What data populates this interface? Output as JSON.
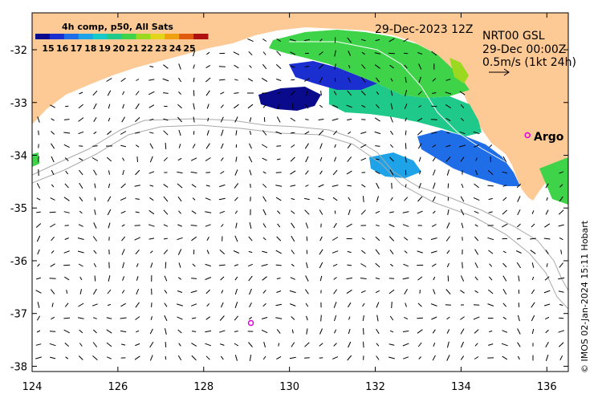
{
  "map": {
    "colorbar_title": "4h comp, p50, All Sats",
    "colorbar_ticks": [
      "15",
      "16",
      "17",
      "18",
      "19",
      "20",
      "21",
      "22",
      "23",
      "24",
      "25"
    ],
    "colorbar_colors": [
      "#0a0a8c",
      "#1b2fd0",
      "#1f6ee8",
      "#1fa3e8",
      "#18c9c9",
      "#1fc98a",
      "#3fd34a",
      "#9ad91f",
      "#e3d51a",
      "#f0a010",
      "#e05a10",
      "#b01010"
    ],
    "date_label": "29-Dec-2023 12Z",
    "info_line1": "NRT00 GSL",
    "info_line2": "29-Dec 00:00Z",
    "info_line3": "0.5m/s (1kt 24h)",
    "argo_label": "Argo",
    "credit": "© IMOS 02-Jan-2024 15:11 Hobart",
    "lat_labels": [
      "-32",
      "-33",
      "-34",
      "-35",
      "-36",
      "-37",
      "-38"
    ],
    "lon_labels": [
      "124",
      "126",
      "128",
      "130",
      "132",
      "134",
      "136"
    ],
    "colors": {
      "land": "#fdc994",
      "isobath": "#aaaaaa",
      "argo_marker": "#e000e0"
    },
    "argo_floats": [
      {
        "lon": 135.55,
        "lat": -33.62
      },
      {
        "lon": 129.1,
        "lat": -37.18
      }
    ]
  }
}
